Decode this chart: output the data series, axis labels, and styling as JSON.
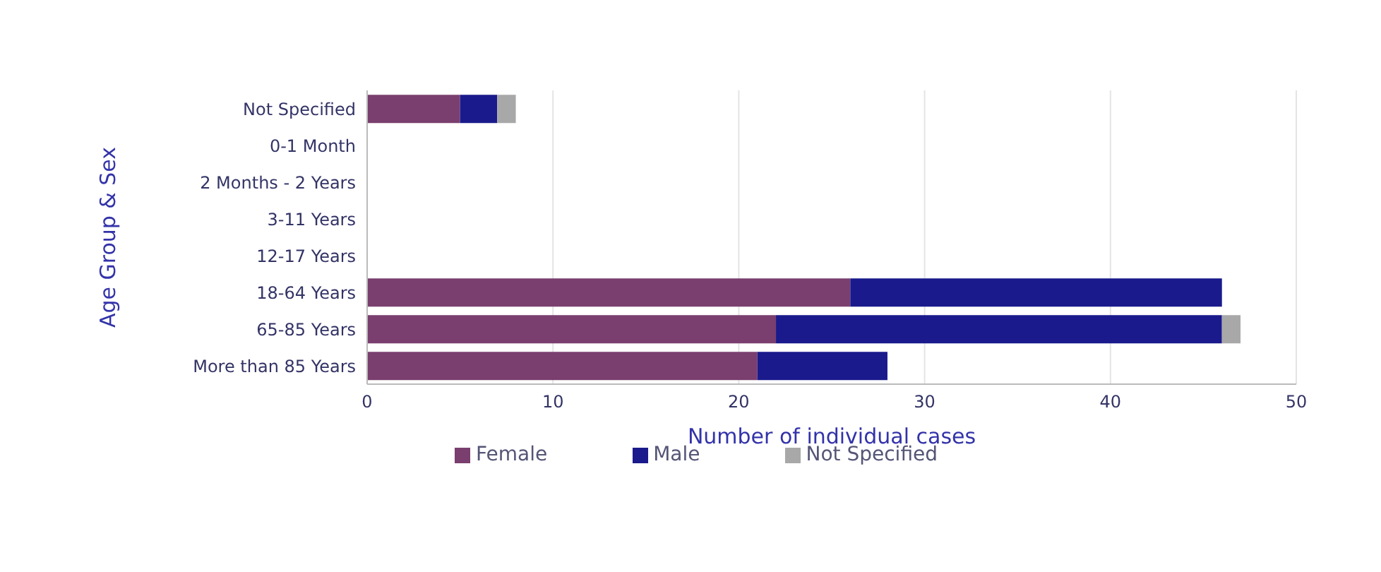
{
  "chart_data": {
    "type": "bar",
    "orientation": "horizontal",
    "stacked": true,
    "xlabel": "Number of individual cases",
    "ylabel": "Age Group & Sex",
    "categories": [
      "Not Specified",
      "0-1 Month",
      "2 Months - 2 Years",
      "3-11 Years",
      "12-17 Years",
      "18-64 Years",
      "65-85 Years",
      "More than 85 Years"
    ],
    "series": [
      {
        "name": "Female",
        "color": "#7a3f6e",
        "values": [
          5,
          0,
          0,
          0,
          0,
          26,
          22,
          21
        ]
      },
      {
        "name": "Male",
        "color": "#1a1a8c",
        "values": [
          2,
          0,
          0,
          0,
          0,
          20,
          24,
          7
        ]
      },
      {
        "name": "Not Specified",
        "color": "#a8a8a8",
        "values": [
          1,
          0,
          0,
          0,
          0,
          0,
          1,
          0
        ]
      }
    ],
    "xlim": [
      0,
      50
    ],
    "xticks": [
      0,
      10,
      20,
      30,
      40,
      50
    ],
    "grid": "x",
    "legend": "bottom"
  }
}
